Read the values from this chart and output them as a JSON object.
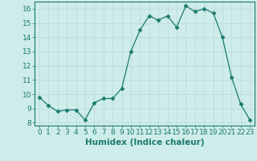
{
  "x": [
    0,
    1,
    2,
    3,
    4,
    5,
    6,
    7,
    8,
    9,
    10,
    11,
    12,
    13,
    14,
    15,
    16,
    17,
    18,
    19,
    20,
    21,
    22,
    23
  ],
  "y": [
    9.8,
    9.2,
    8.8,
    8.9,
    8.9,
    8.2,
    9.4,
    9.7,
    9.7,
    10.4,
    13.0,
    14.5,
    15.5,
    15.2,
    15.5,
    14.7,
    16.2,
    15.8,
    16.0,
    15.7,
    14.0,
    11.2,
    9.3,
    8.2
  ],
  "line_color": "#1a7a6e",
  "marker": "D",
  "marker_size": 2.5,
  "bg_color": "#ceecea",
  "grid_major_color": "#b8d8d5",
  "grid_minor_color": "#d6edeb",
  "tick_color": "#1a7a6e",
  "xlabel": "Humidex (Indice chaleur)",
  "xlabel_fontsize": 7.5,
  "tick_fontsize": 6.5,
  "ylim": [
    7.8,
    16.5
  ],
  "xlim": [
    -0.5,
    23.5
  ],
  "yticks": [
    8,
    9,
    10,
    11,
    12,
    13,
    14,
    15,
    16
  ],
  "xticks": [
    0,
    1,
    2,
    3,
    4,
    5,
    6,
    7,
    8,
    9,
    10,
    11,
    12,
    13,
    14,
    15,
    16,
    17,
    18,
    19,
    20,
    21,
    22,
    23
  ]
}
